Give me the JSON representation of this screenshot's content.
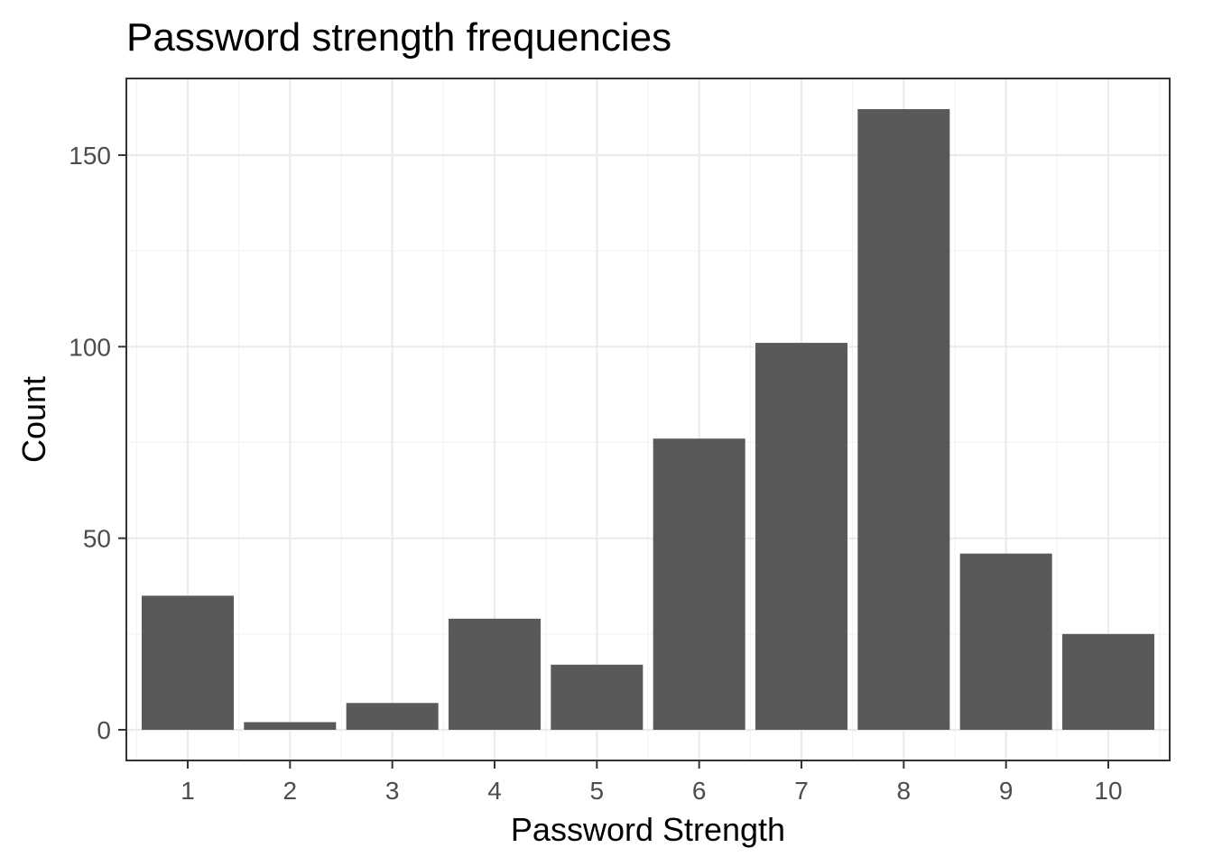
{
  "chart_data": {
    "type": "bar",
    "title": "Password strength frequencies",
    "xlabel": "Password Strength",
    "ylabel": "Count",
    "categories": [
      "1",
      "2",
      "3",
      "4",
      "5",
      "6",
      "7",
      "8",
      "9",
      "10"
    ],
    "values": [
      35,
      2,
      7,
      29,
      17,
      76,
      101,
      162,
      46,
      25
    ],
    "ylim": [
      -8,
      170
    ],
    "yticks": [
      0,
      50,
      100,
      150
    ],
    "ytick_labels": [
      "0",
      "50",
      "100",
      "150"
    ],
    "grid": true,
    "bar_color": "#595959",
    "background": "#ffffff"
  }
}
